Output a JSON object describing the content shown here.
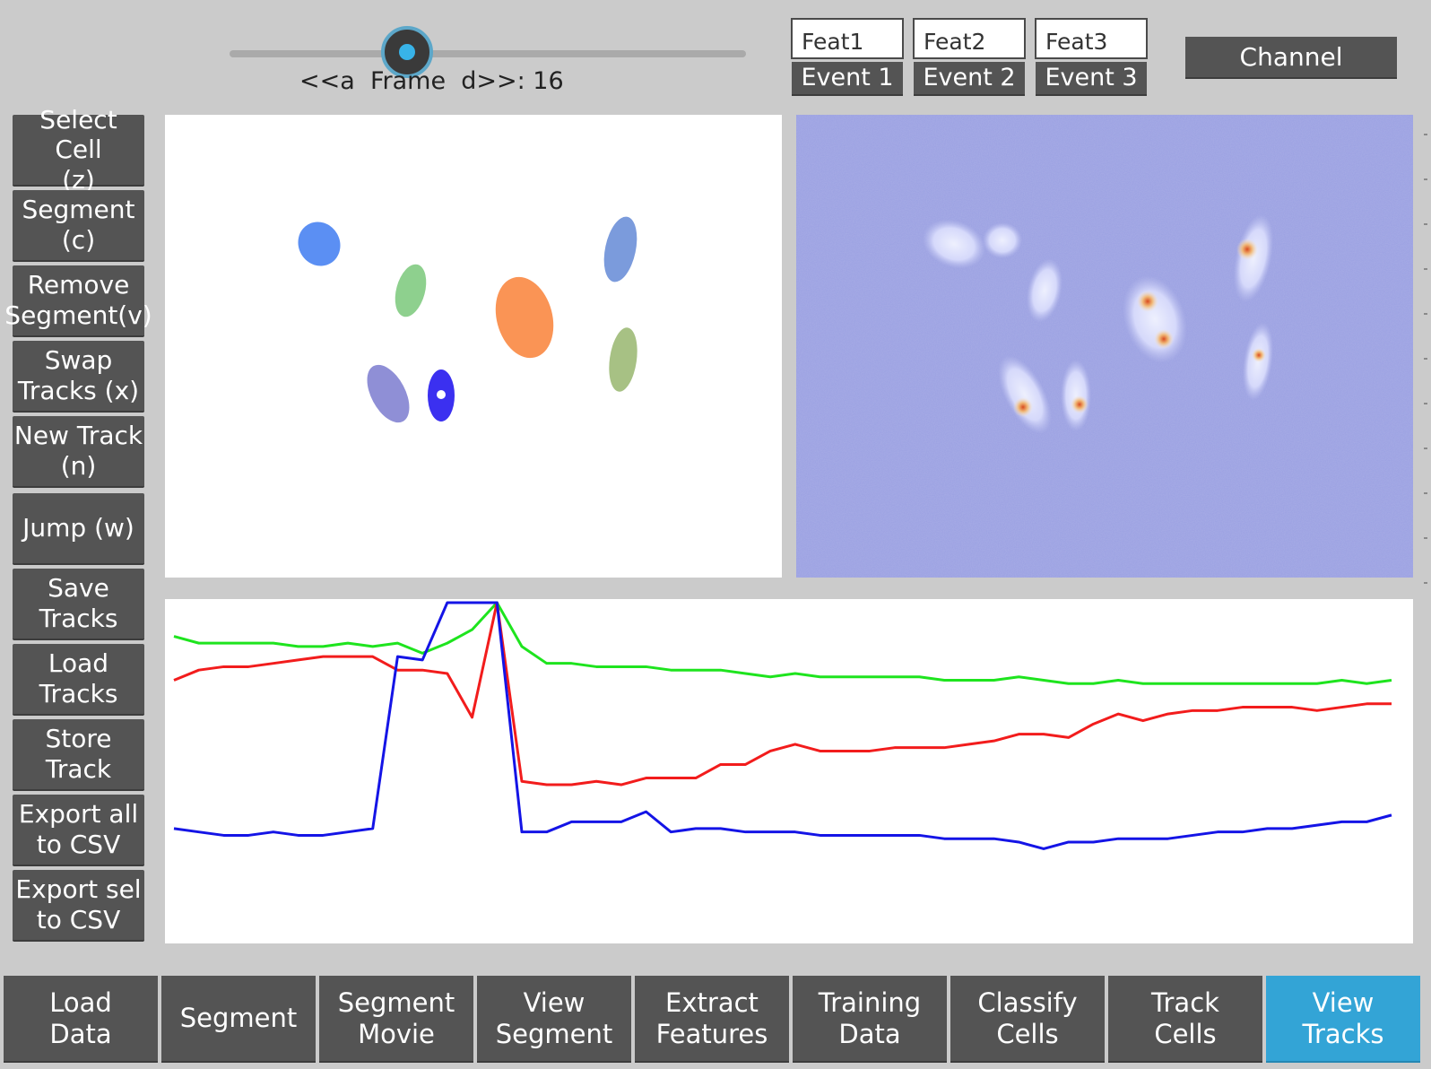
{
  "slider": {
    "label": "<<a  Frame  d>>: 16",
    "value": 16
  },
  "features": [
    {
      "box": "Feat1",
      "event": "Event 1"
    },
    {
      "box": "Feat2",
      "event": "Event 2"
    },
    {
      "box": "Feat3",
      "event": "Event 3"
    }
  ],
  "channel_button": "Channel",
  "sidebar": [
    "Select Cell\n(z)",
    "Segment\n(c)",
    "Remove\nSegment(v)",
    "Swap\nTracks (x)",
    "New Track\n(n)",
    "Jump (w)",
    "Save\nTracks",
    "Load\nTracks",
    "Store\nTrack",
    "Export all\nto CSV",
    "Export sel\nto CSV"
  ],
  "tabs": [
    {
      "label": "Load\nData",
      "active": false
    },
    {
      "label": "Segment",
      "active": false
    },
    {
      "label": "Segment\nMovie",
      "active": false
    },
    {
      "label": "View\nSegment",
      "active": false
    },
    {
      "label": "Extract\nFeatures",
      "active": false
    },
    {
      "label": "Training\nData",
      "active": false
    },
    {
      "label": "Classify\nCells",
      "active": false
    },
    {
      "label": "Track\nCells",
      "active": false
    },
    {
      "label": "View\nTracks",
      "active": true
    }
  ],
  "colors": {
    "active_tab": "#33a4d6",
    "button": "#545454",
    "microscopy_background": "#9aa0e2"
  },
  "segmentation_cells": [
    {
      "color": "#5b8ff3"
    },
    {
      "color": "#7b9bdc"
    },
    {
      "color": "#8ed08e"
    },
    {
      "color": "#fa9455"
    },
    {
      "color": "#a7c184"
    },
    {
      "color": "#8f8fd6"
    },
    {
      "color": "#3b30f0"
    }
  ],
  "chart_data": {
    "type": "line",
    "title": "",
    "xlabel": "",
    "ylabel": "",
    "x": [
      1,
      2,
      3,
      4,
      5,
      6,
      7,
      8,
      9,
      10,
      11,
      12,
      13,
      14,
      15,
      16,
      17,
      18,
      19,
      20,
      21,
      22,
      23,
      24,
      25,
      26,
      27,
      28,
      29,
      30,
      31,
      32,
      33,
      34,
      35,
      36,
      37,
      38,
      39,
      40,
      41,
      42,
      43,
      44,
      45,
      46,
      47,
      48,
      49,
      50
    ],
    "ylim": [
      0,
      100
    ],
    "series": [
      {
        "color": "#1ee41e",
        "values": [
          90,
          88,
          88,
          88,
          88,
          87,
          87,
          88,
          87,
          88,
          85,
          88,
          92,
          100,
          87,
          82,
          82,
          81,
          81,
          81,
          80,
          80,
          80,
          79,
          78,
          79,
          78,
          78,
          78,
          78,
          78,
          77,
          77,
          77,
          78,
          77,
          76,
          76,
          77,
          76,
          76,
          76,
          76,
          76,
          76,
          76,
          76,
          77,
          76,
          77
        ]
      },
      {
        "color": "#f21c1c",
        "values": [
          77,
          80,
          81,
          81,
          82,
          83,
          84,
          84,
          84,
          80,
          80,
          79,
          66,
          100,
          47,
          46,
          46,
          47,
          46,
          48,
          48,
          48,
          52,
          52,
          56,
          58,
          56,
          56,
          56,
          57,
          57,
          57,
          58,
          59,
          61,
          61,
          60,
          64,
          67,
          65,
          67,
          68,
          68,
          69,
          69,
          69,
          68,
          69,
          70,
          70
        ]
      },
      {
        "color": "#1414e6",
        "values": [
          33,
          32,
          31,
          31,
          32,
          31,
          31,
          32,
          33,
          84,
          83,
          100,
          100,
          100,
          32,
          32,
          35,
          35,
          35,
          38,
          32,
          33,
          33,
          32,
          32,
          32,
          31,
          31,
          31,
          31,
          31,
          30,
          30,
          30,
          29,
          27,
          29,
          29,
          30,
          30,
          30,
          31,
          32,
          32,
          33,
          33,
          34,
          35,
          35,
          37
        ]
      }
    ]
  }
}
